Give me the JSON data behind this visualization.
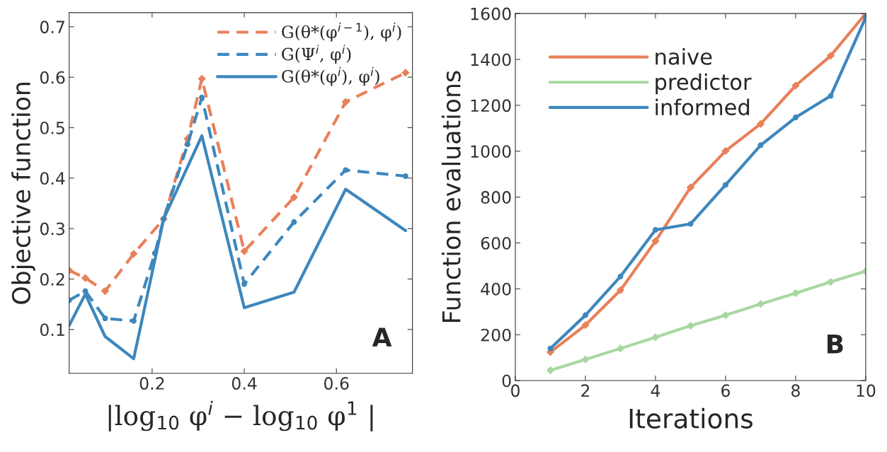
{
  "chart_data": [
    {
      "type": "line",
      "xlabel": "|log$_{10}$ φ$^{i}$ − log$_{10}$ φ$^{1}$ |",
      "ylabel": "Objective function",
      "xlim": [
        0.02,
        0.765
      ],
      "xticks": [
        0.2,
        0.4,
        0.6
      ],
      "ylim": [
        0.013,
        0.728
      ],
      "yticks": [
        0.1,
        0.2,
        0.3,
        0.4,
        0.5,
        0.6,
        0.7
      ],
      "grid": false,
      "legend": "top right",
      "annotations": [
        "A"
      ],
      "series": [
        {
          "name": "G(θ*(φ$^{i−1}$), φ$^{i}$)",
          "color": "#e8805a",
          "line_style": "dashed",
          "marker": "diamond",
          "x": [
            0.02,
            0.055,
            0.098,
            0.16,
            0.225,
            0.277,
            0.308,
            0.4,
            0.508,
            0.62,
            0.75
          ],
          "values": [
            0.217,
            0.202,
            0.176,
            0.25,
            0.319,
            0.478,
            0.597,
            0.255,
            0.362,
            0.551,
            0.609
          ]
        },
        {
          "name": "G(Ψ$^{i}$, φ$^{i}$)",
          "color": "#3d87bd",
          "line_style": "dashed",
          "marker": "circle",
          "x": [
            0.02,
            0.055,
            0.098,
            0.16,
            0.206,
            0.225,
            0.277,
            0.308,
            0.4,
            0.508,
            0.62,
            0.75
          ],
          "values": [
            0.158,
            0.176,
            0.122,
            0.117,
            0.251,
            0.319,
            0.467,
            0.56,
            0.19,
            0.313,
            0.416,
            0.404
          ]
        },
        {
          "name": "G(θ*(φ$^{i}$), φ$^{i}$)",
          "color": "#3d87bd",
          "line_style": "solid",
          "marker": "none",
          "x": [
            0.02,
            0.055,
            0.098,
            0.16,
            0.225,
            0.308,
            0.4,
            0.508,
            0.62,
            0.75
          ],
          "values": [
            0.108,
            0.17,
            0.086,
            0.042,
            0.319,
            0.484,
            0.143,
            0.174,
            0.378,
            0.296
          ]
        }
      ]
    },
    {
      "type": "line",
      "xlabel": "Iterations",
      "ylabel": "Function evaluations",
      "xlim": [
        0,
        10
      ],
      "xticks": [
        0,
        2,
        4,
        6,
        8,
        10
      ],
      "ylim": [
        0,
        1600
      ],
      "yticks": [
        0,
        200,
        400,
        600,
        800,
        1000,
        1200,
        1400,
        1600
      ],
      "grid": false,
      "legend": "upper left",
      "annotations": [
        "B"
      ],
      "x": [
        1,
        2,
        3,
        4,
        5,
        6,
        7,
        8,
        9,
        10
      ],
      "series": [
        {
          "name": "naive",
          "color": "#e8805a",
          "line_style": "solid",
          "marker": "diamond",
          "values": [
            124,
            242,
            394,
            608,
            842,
            1001,
            1119,
            1286,
            1416,
            1600
          ]
        },
        {
          "name": "predictor",
          "color": "#a8d8a0",
          "line_style": "solid",
          "marker": "diamond",
          "values": [
            45,
            92,
            140,
            189,
            239,
            285,
            334,
            381,
            430,
            477
          ]
        },
        {
          "name": "informed",
          "color": "#3d87bd",
          "line_style": "solid",
          "marker": "circle",
          "values": [
            140,
            285,
            454,
            657,
            683,
            853,
            1026,
            1147,
            1241,
            1583
          ]
        }
      ]
    }
  ]
}
